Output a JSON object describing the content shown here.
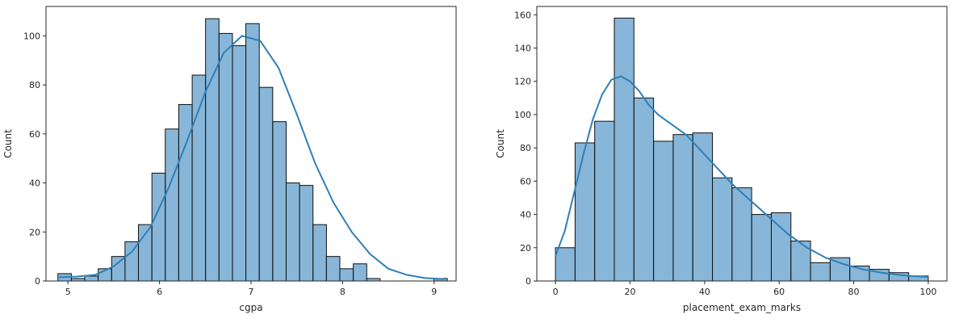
{
  "chart_data": [
    {
      "type": "histogram",
      "xlabel": "cgpa",
      "ylabel": "Count",
      "xlim": [
        4.76,
        9.24
      ],
      "ylim": [
        0,
        112
      ],
      "xticks": [
        5,
        6,
        7,
        8,
        9
      ],
      "yticks": [
        0,
        20,
        40,
        60,
        80,
        100
      ],
      "bin_width": 0.1467,
      "bin_starts": [
        4.89,
        5.037,
        5.183,
        5.33,
        5.477,
        5.623,
        5.77,
        5.917,
        6.063,
        6.21,
        6.357,
        6.503,
        6.65,
        6.797,
        6.943,
        7.09,
        7.237,
        7.383,
        7.53,
        7.677,
        7.823,
        7.97,
        8.117,
        8.263,
        8.41,
        8.557,
        8.703,
        8.85,
        8.997
      ],
      "values": [
        3,
        1,
        2,
        5,
        10,
        16,
        23,
        44,
        62,
        72,
        84,
        107,
        101,
        96,
        105,
        79,
        65,
        40,
        39,
        23,
        10,
        5,
        7,
        1,
        0,
        0,
        0,
        0,
        1
      ],
      "kde_x": [
        4.9,
        5.1,
        5.3,
        5.5,
        5.7,
        5.9,
        6.1,
        6.3,
        6.5,
        6.7,
        6.9,
        7.1,
        7.3,
        7.5,
        7.7,
        7.9,
        8.1,
        8.3,
        8.5,
        8.7,
        8.9,
        9.1
      ],
      "kde_y": [
        1.5,
        1.8,
        2.5,
        6,
        12,
        22,
        38,
        57,
        77,
        93,
        100,
        98,
        87,
        68,
        48,
        32,
        20,
        11,
        5,
        2.5,
        1.2,
        0.8
      ],
      "color": "#5f9ecb",
      "kde_color": "#2f7fb9"
    },
    {
      "type": "histogram",
      "xlabel": "placement_exam_marks",
      "ylabel": "Count",
      "xlim": [
        -5,
        105
      ],
      "ylim": [
        0,
        165
      ],
      "xticks": [
        0,
        20,
        40,
        60,
        80,
        100
      ],
      "yticks": [
        0,
        20,
        40,
        60,
        80,
        100,
        120,
        140,
        160
      ],
      "bin_width": 5.263,
      "bin_starts": [
        0,
        5.263,
        10.526,
        15.789,
        21.053,
        26.316,
        31.579,
        36.842,
        42.105,
        47.368,
        52.632,
        57.895,
        63.158,
        68.421,
        73.684,
        78.947,
        84.211,
        89.474,
        94.737
      ],
      "values": [
        20,
        83,
        96,
        158,
        110,
        84,
        88,
        89,
        62,
        56,
        40,
        41,
        24,
        11,
        14,
        9,
        7,
        5,
        3
      ],
      "kde_x": [
        0,
        2.5,
        5,
        7.5,
        10,
        12.5,
        15,
        17.5,
        20,
        22.5,
        25,
        27.5,
        30,
        32.5,
        35,
        37.5,
        40,
        42.5,
        45,
        47.5,
        50,
        52.5,
        55,
        57.5,
        60,
        62.5,
        65,
        67.5,
        70,
        72.5,
        75,
        77.5,
        80,
        82.5,
        85,
        87.5,
        90,
        92.5,
        95,
        97.5,
        100
      ],
      "kde_y": [
        15,
        30,
        53,
        76,
        97,
        112,
        121,
        123,
        120,
        114,
        106,
        100,
        96,
        92,
        88,
        82,
        76,
        70,
        64,
        58,
        53,
        48,
        43,
        38,
        33,
        28,
        24,
        20,
        17,
        14,
        12,
        10,
        8.5,
        7,
        6,
        5,
        4.2,
        3.6,
        3.1,
        2.7,
        2.4
      ],
      "color": "#5f9ecb",
      "kde_color": "#2f7fb9"
    }
  ]
}
